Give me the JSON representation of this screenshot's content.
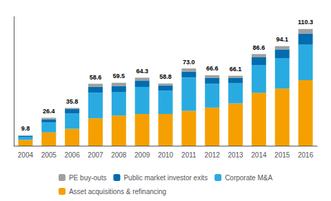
{
  "chart_data": {
    "type": "bar",
    "stacked": true,
    "categories": [
      "2004",
      "2005",
      "2006",
      "2007",
      "2008",
      "2009",
      "2010",
      "2011",
      "2012",
      "2013",
      "2014",
      "2015",
      "2016"
    ],
    "series": [
      {
        "name": "Asset acquisitions & refinancing",
        "color": "#f5a000",
        "values": [
          5.5,
          12.5,
          16.0,
          26.0,
          28.5,
          30.0,
          30.0,
          33.0,
          36.0,
          40.0,
          50.0,
          54.0,
          62.0
        ]
      },
      {
        "name": "Corporate M&A",
        "color": "#29abe2",
        "values": [
          3.0,
          9.5,
          14.5,
          24.0,
          22.0,
          25.5,
          22.0,
          31.5,
          22.5,
          19.0,
          26.0,
          28.5,
          33.5
        ]
      },
      {
        "name": "Public market investor exits",
        "color": "#006db0",
        "values": [
          0.9,
          3.0,
          4.0,
          5.5,
          6.0,
          5.8,
          5.0,
          5.5,
          5.5,
          5.0,
          7.5,
          8.5,
          10.5
        ]
      },
      {
        "name": "PE buy-outs",
        "color": "#a0a0a0",
        "values": [
          0.4,
          1.4,
          1.3,
          3.1,
          3.0,
          3.0,
          1.8,
          3.0,
          2.6,
          2.1,
          3.1,
          3.1,
          4.3
        ]
      }
    ],
    "totals": [
      9.8,
      26.4,
      35.8,
      58.6,
      59.5,
      64.3,
      58.8,
      73.0,
      66.6,
      66.1,
      86.6,
      94.1,
      110.3
    ],
    "total_labels": [
      "9.8",
      "26.4",
      "35.8",
      "58.6",
      "59.5",
      "64.3",
      "58.8",
      "73.0",
      "66.6",
      "66.1",
      "86.6",
      "94.1",
      "110.3"
    ],
    "ylim": [
      0,
      122
    ],
    "tick_labels": "x",
    "grid": false,
    "legend": "bottom"
  }
}
